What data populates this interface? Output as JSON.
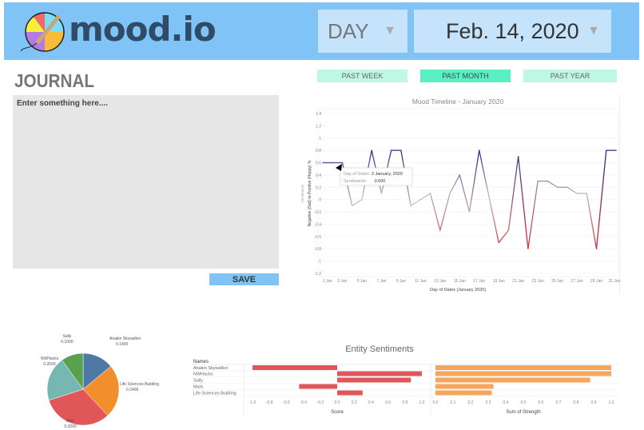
{
  "header": {
    "logo_text": "mood.io",
    "period_select": {
      "value": "DAY"
    },
    "date_select": {
      "value": "Feb. 14, 2020"
    },
    "caret_icon": "triangle-down"
  },
  "journal": {
    "title": "JOURNAL",
    "placeholder": "Enter something here....",
    "save_label": "SAVE"
  },
  "tabs": [
    {
      "label": "PAST WEEK",
      "active": false
    },
    {
      "label": "PAST MONTH",
      "active": true
    },
    {
      "label": "PAST YEAR",
      "active": false
    }
  ],
  "colors": {
    "header": "#80c4f7",
    "positive": "#2b2b90",
    "neutral": "#c8c8c8",
    "negative": "#d9303a",
    "active_tab": "#5af0c6",
    "tab": "#bff7e6"
  },
  "chart_data": [
    {
      "type": "line",
      "title": "Mood Timeline - January 2020",
      "xlabel": "Day of Dates [January 2020]",
      "ylabel": "Negative (Sad)  to  Positive (Happy) %",
      "ylabel_secondary": "Sentiments",
      "ylim": [
        -1.2,
        1.4
      ],
      "yticks": [
        1.4,
        1.2,
        1.0,
        0.8,
        0.6,
        0.4,
        0.2,
        0.0,
        -0.2,
        -0.4,
        -0.6,
        -0.8,
        -1.0,
        -1.2
      ],
      "xticks": [
        "1 Jan",
        "3 Jan",
        "5 Jan",
        "7 Jan",
        "9 Jan",
        "11 Jan",
        "13 Jan",
        "15 Jan",
        "17 Jan",
        "19 Jan",
        "21 Jan",
        "23 Jan",
        "25 Jan",
        "27 Jan",
        "29 Jan",
        "31 Jan"
      ],
      "x": [
        1,
        2,
        3,
        4,
        5,
        6,
        7,
        8,
        9,
        10,
        11,
        12,
        13,
        14,
        15,
        16,
        17,
        18,
        19,
        20,
        21,
        22,
        23,
        24,
        25,
        26,
        27,
        28,
        29,
        30,
        31
      ],
      "values": [
        0.6,
        0.6,
        0.6,
        -0.1,
        0.0,
        0.8,
        0.1,
        0.8,
        0.8,
        -0.1,
        0.0,
        0.1,
        -0.5,
        0.1,
        0.4,
        -0.2,
        0.8,
        0.05,
        -0.7,
        -0.5,
        0.7,
        -0.8,
        0.3,
        0.3,
        0.2,
        0.2,
        0.1,
        0.1,
        -0.8,
        0.8,
        0.8
      ],
      "grid": true,
      "tooltip": {
        "label1": "Day of Dates:",
        "value1": "3 January, 2020",
        "label2": "Sentiments:",
        "value2": "0.600"
      }
    },
    {
      "type": "pie",
      "categories": [
        "Anakin Skywalker",
        "Life Sciences Building",
        "Mark",
        "NWHacks",
        "Sally"
      ],
      "values": [
        0.14,
        0.24,
        0.32,
        0.2,
        0.1
      ],
      "labels": [
        "0.1400",
        "0.2400",
        "0.3200",
        "0.2000",
        "0.1000"
      ],
      "colors": [
        "#4e79a7",
        "#f28e2b",
        "#e15759",
        "#76b7b2",
        "#59a14f"
      ]
    },
    {
      "type": "bar",
      "title": "Entity Sentiments",
      "row_header": "Names",
      "categories": [
        "Anakin Skywalker",
        "NWHacks",
        "Sally",
        "Mark",
        "Life Sciences Building"
      ],
      "series": [
        {
          "name": "Score",
          "values": [
            -1.0,
            1.0,
            0.87,
            -0.45,
            0.3
          ],
          "color": "#e15759",
          "xlim": [
            -1.0,
            1.0
          ],
          "ticks": [
            "-1.0",
            "-0.8",
            "-0.6",
            "-0.4",
            "-0.2",
            "0.0",
            "0.2",
            "0.4",
            "0.6",
            "0.8",
            "1.0"
          ]
        },
        {
          "name": "Sum of Strength",
          "values": [
            1.0,
            1.0,
            0.88,
            0.33,
            0.32
          ],
          "color": "#f5a65b",
          "xlim": [
            0,
            1.0
          ],
          "ticks": [
            "0.0",
            "0.1",
            "0.2",
            "0.3",
            "0.4",
            "0.5",
            "0.6",
            "0.7",
            "0.8",
            "0.9",
            "1.0"
          ]
        }
      ]
    }
  ]
}
